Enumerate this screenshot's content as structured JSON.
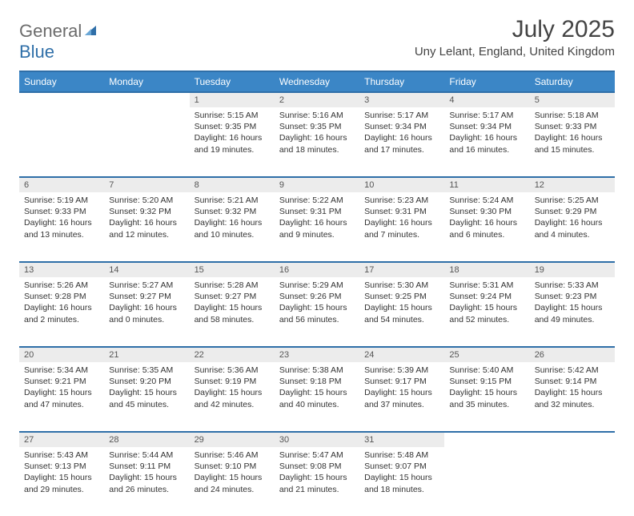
{
  "brand": {
    "part1": "General",
    "part2": "Blue"
  },
  "title": "July 2025",
  "location": "Uny Lelant, England, United Kingdom",
  "colors": {
    "header_bg": "#3b86c6",
    "header_border": "#2f6fa8",
    "daynum_bg": "#ececec",
    "text": "#333333"
  },
  "day_headers": [
    "Sunday",
    "Monday",
    "Tuesday",
    "Wednesday",
    "Thursday",
    "Friday",
    "Saturday"
  ],
  "weeks": [
    [
      null,
      null,
      {
        "n": "1",
        "sr": "5:15 AM",
        "ss": "9:35 PM",
        "dl": "16 hours and 19 minutes."
      },
      {
        "n": "2",
        "sr": "5:16 AM",
        "ss": "9:35 PM",
        "dl": "16 hours and 18 minutes."
      },
      {
        "n": "3",
        "sr": "5:17 AM",
        "ss": "9:34 PM",
        "dl": "16 hours and 17 minutes."
      },
      {
        "n": "4",
        "sr": "5:17 AM",
        "ss": "9:34 PM",
        "dl": "16 hours and 16 minutes."
      },
      {
        "n": "5",
        "sr": "5:18 AM",
        "ss": "9:33 PM",
        "dl": "16 hours and 15 minutes."
      }
    ],
    [
      {
        "n": "6",
        "sr": "5:19 AM",
        "ss": "9:33 PM",
        "dl": "16 hours and 13 minutes."
      },
      {
        "n": "7",
        "sr": "5:20 AM",
        "ss": "9:32 PM",
        "dl": "16 hours and 12 minutes."
      },
      {
        "n": "8",
        "sr": "5:21 AM",
        "ss": "9:32 PM",
        "dl": "16 hours and 10 minutes."
      },
      {
        "n": "9",
        "sr": "5:22 AM",
        "ss": "9:31 PM",
        "dl": "16 hours and 9 minutes."
      },
      {
        "n": "10",
        "sr": "5:23 AM",
        "ss": "9:31 PM",
        "dl": "16 hours and 7 minutes."
      },
      {
        "n": "11",
        "sr": "5:24 AM",
        "ss": "9:30 PM",
        "dl": "16 hours and 6 minutes."
      },
      {
        "n": "12",
        "sr": "5:25 AM",
        "ss": "9:29 PM",
        "dl": "16 hours and 4 minutes."
      }
    ],
    [
      {
        "n": "13",
        "sr": "5:26 AM",
        "ss": "9:28 PM",
        "dl": "16 hours and 2 minutes."
      },
      {
        "n": "14",
        "sr": "5:27 AM",
        "ss": "9:27 PM",
        "dl": "16 hours and 0 minutes."
      },
      {
        "n": "15",
        "sr": "5:28 AM",
        "ss": "9:27 PM",
        "dl": "15 hours and 58 minutes."
      },
      {
        "n": "16",
        "sr": "5:29 AM",
        "ss": "9:26 PM",
        "dl": "15 hours and 56 minutes."
      },
      {
        "n": "17",
        "sr": "5:30 AM",
        "ss": "9:25 PM",
        "dl": "15 hours and 54 minutes."
      },
      {
        "n": "18",
        "sr": "5:31 AM",
        "ss": "9:24 PM",
        "dl": "15 hours and 52 minutes."
      },
      {
        "n": "19",
        "sr": "5:33 AM",
        "ss": "9:23 PM",
        "dl": "15 hours and 49 minutes."
      }
    ],
    [
      {
        "n": "20",
        "sr": "5:34 AM",
        "ss": "9:21 PM",
        "dl": "15 hours and 47 minutes."
      },
      {
        "n": "21",
        "sr": "5:35 AM",
        "ss": "9:20 PM",
        "dl": "15 hours and 45 minutes."
      },
      {
        "n": "22",
        "sr": "5:36 AM",
        "ss": "9:19 PM",
        "dl": "15 hours and 42 minutes."
      },
      {
        "n": "23",
        "sr": "5:38 AM",
        "ss": "9:18 PM",
        "dl": "15 hours and 40 minutes."
      },
      {
        "n": "24",
        "sr": "5:39 AM",
        "ss": "9:17 PM",
        "dl": "15 hours and 37 minutes."
      },
      {
        "n": "25",
        "sr": "5:40 AM",
        "ss": "9:15 PM",
        "dl": "15 hours and 35 minutes."
      },
      {
        "n": "26",
        "sr": "5:42 AM",
        "ss": "9:14 PM",
        "dl": "15 hours and 32 minutes."
      }
    ],
    [
      {
        "n": "27",
        "sr": "5:43 AM",
        "ss": "9:13 PM",
        "dl": "15 hours and 29 minutes."
      },
      {
        "n": "28",
        "sr": "5:44 AM",
        "ss": "9:11 PM",
        "dl": "15 hours and 26 minutes."
      },
      {
        "n": "29",
        "sr": "5:46 AM",
        "ss": "9:10 PM",
        "dl": "15 hours and 24 minutes."
      },
      {
        "n": "30",
        "sr": "5:47 AM",
        "ss": "9:08 PM",
        "dl": "15 hours and 21 minutes."
      },
      {
        "n": "31",
        "sr": "5:48 AM",
        "ss": "9:07 PM",
        "dl": "15 hours and 18 minutes."
      },
      null,
      null
    ]
  ],
  "labels": {
    "sunrise": "Sunrise:",
    "sunset": "Sunset:",
    "daylight": "Daylight:"
  }
}
